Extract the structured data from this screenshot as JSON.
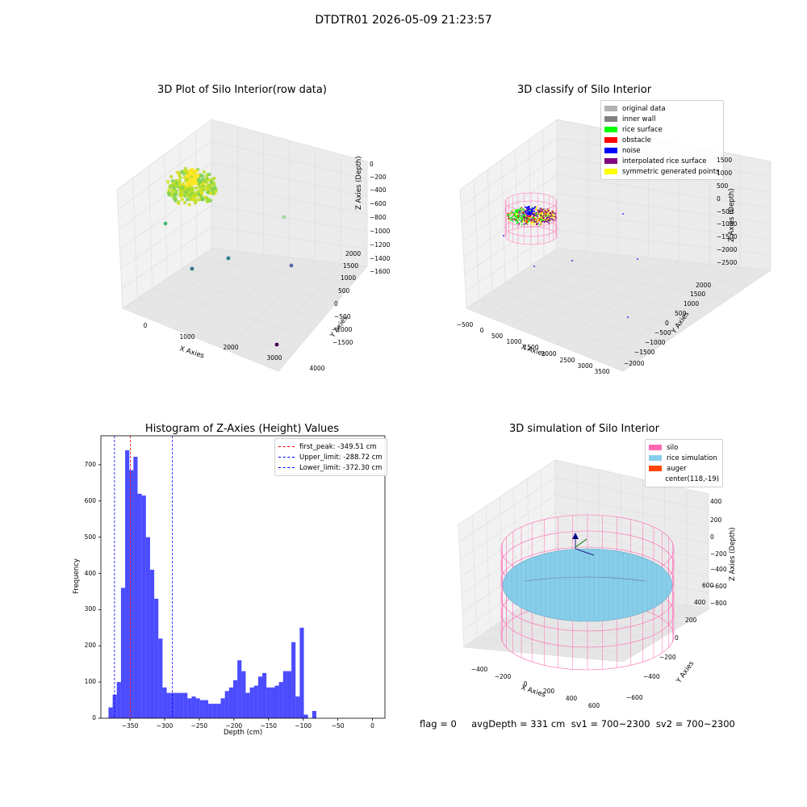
{
  "suptitle": "DTDTR01 2026-05-09 21:23:57",
  "footer": "flag = 0     avgDepth = 331 cm  sv1 = 700~2300  sv2 = 700~2300",
  "chart_data": [
    {
      "type": "scatter",
      "title": "3D Plot of Silo Interior(row data)",
      "xlabel": "X Axies",
      "ylabel": "Y Axies",
      "zlabel": "Z Axies (Depth)",
      "xticks": [
        "0",
        "1000",
        "2000",
        "3000",
        "4000"
      ],
      "yticks": [
        "−1500",
        "−1000",
        "−500",
        "0",
        "500",
        "1000",
        "1500",
        "2000"
      ],
      "zticks": [
        "−1600",
        "−1400",
        "−1200",
        "−1000",
        "−800",
        "−600",
        "−400",
        "−200",
        "0"
      ],
      "colormap": [
        "#440154",
        "#3b528b",
        "#21918c",
        "#5ec962",
        "#fde725"
      ]
    },
    {
      "type": "scatter",
      "title": "3D classify of Silo Interior",
      "xlabel": "X Axies",
      "ylabel": "Y Axies",
      "zlabel": "Z Axies (Depth)",
      "xticks": [
        "−500",
        "0",
        "500",
        "1000",
        "1500",
        "2000",
        "2500",
        "3000",
        "3500"
      ],
      "yticks": [
        "−2000",
        "−1500",
        "−1000",
        "−500",
        "0",
        "500",
        "1000",
        "1500",
        "2000"
      ],
      "zticks": [
        "−2500",
        "−2000",
        "−1500",
        "−1000",
        "−500",
        "0",
        "500",
        "1000",
        "1500"
      ],
      "legend_position": "top-right",
      "legend": [
        {
          "label": "original data",
          "color": "#b2b2b2"
        },
        {
          "label": "inner wall",
          "color": "#808080"
        },
        {
          "label": "rice surface",
          "color": "#00ff00"
        },
        {
          "label": "obstacle",
          "color": "#ff0000"
        },
        {
          "label": "noise",
          "color": "#0000ff"
        },
        {
          "label": "interpolated rice surface",
          "color": "#800080"
        },
        {
          "label": "symmetric generated points",
          "color": "#ffff00"
        }
      ]
    },
    {
      "type": "bar",
      "title": "Histogram of Z-Axies (Height) Values",
      "xlabel": "Depth (cm)",
      "ylabel": "Frequency",
      "xlim": [
        -392,
        18
      ],
      "ylim": [
        0,
        780
      ],
      "xticks": [
        -350,
        -300,
        -250,
        -200,
        -150,
        -100,
        -50,
        0
      ],
      "xtick_labels": [
        "−350",
        "−300",
        "−250",
        "−200",
        "−150",
        "−100",
        "−50",
        "0"
      ],
      "yticks": [
        0,
        100,
        200,
        300,
        400,
        500,
        600,
        700
      ],
      "bar_color": "#0000ff",
      "bin_start": -381,
      "bin_width": 6.0,
      "values": [
        30,
        65,
        100,
        360,
        740,
        685,
        722,
        620,
        615,
        500,
        410,
        330,
        220,
        85,
        70,
        70,
        70,
        70,
        70,
        55,
        60,
        55,
        50,
        50,
        40,
        40,
        40,
        55,
        75,
        85,
        105,
        160,
        130,
        70,
        85,
        90,
        115,
        125,
        85,
        85,
        90,
        100,
        130,
        130,
        210,
        60,
        250,
        10,
        0,
        20
      ],
      "lines": [
        {
          "label": "first_peak: -349.51 cm",
          "x": -349.51,
          "color": "#ff0000"
        },
        {
          "label": "Upper_limit: -288.72 cm",
          "x": -288.72,
          "color": "#0000ff"
        },
        {
          "label": "Lower_limit: -372.30 cm",
          "x": -372.3,
          "color": "#0000ff"
        }
      ],
      "legend_position": "top-right"
    },
    {
      "type": "surface",
      "title": "3D simulation of Silo Interior",
      "xlabel": "X Axies",
      "ylabel": "Y Axies",
      "zlabel": "Z Axies (Depth)",
      "xticks": [
        "−400",
        "−200",
        "0",
        "200",
        "400",
        "600"
      ],
      "yticks": [
        "−600",
        "−400",
        "−200",
        "0",
        "200",
        "400",
        "600"
      ],
      "zticks": [
        "−800",
        "−600",
        "−400",
        "−200",
        "0",
        "200",
        "400"
      ],
      "legend_position": "top-right",
      "legend": [
        {
          "label": "silo",
          "color": "#ff69b4"
        },
        {
          "label": "rice simulation",
          "color": "#87ceeb"
        },
        {
          "label": "auger",
          "color": "#ff4500"
        },
        {
          "label": "center(118,-19)",
          "color": ""
        }
      ]
    }
  ]
}
